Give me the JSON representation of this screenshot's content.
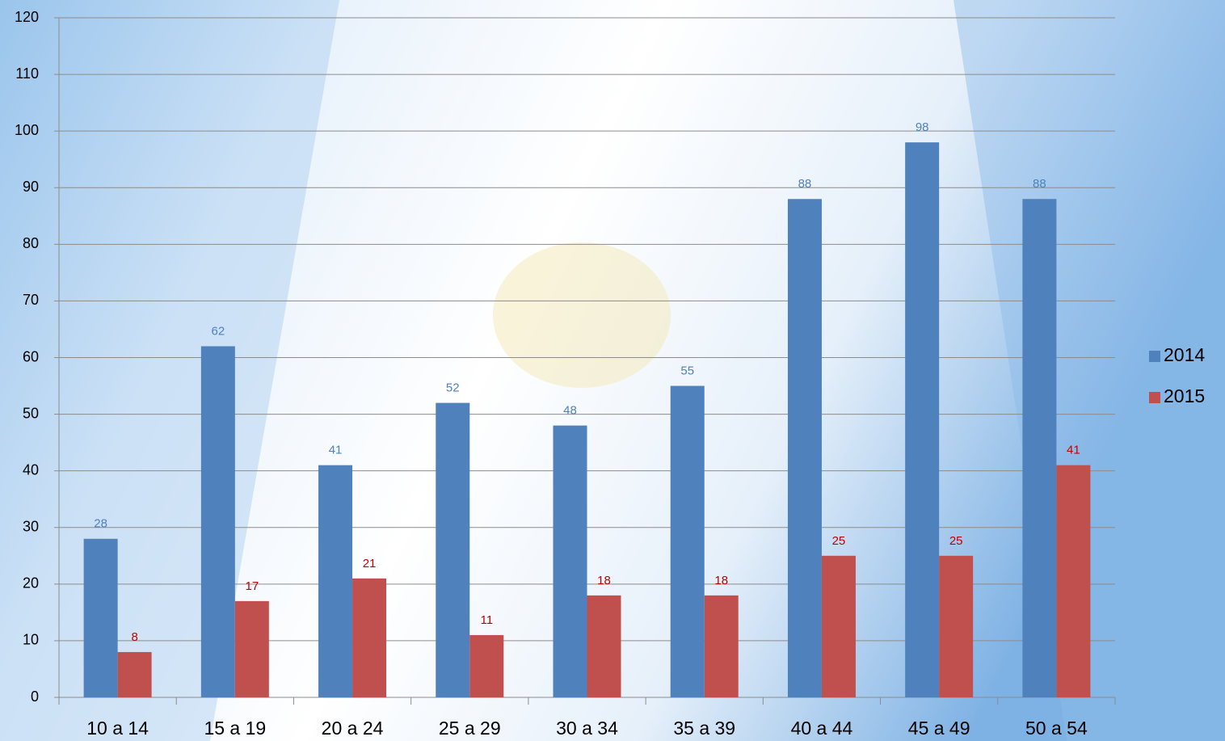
{
  "chart_data": {
    "type": "bar",
    "categories": [
      "10 a 14",
      "15 a 19",
      "20 a 24",
      "25 a 29",
      "30 a 34",
      "35 a 39",
      "40 a 44",
      "45 a 49",
      "50 a 54"
    ],
    "series": [
      {
        "name": "2014",
        "color": "#4f81bd",
        "label_color": "#4f81bd",
        "values": [
          28,
          62,
          41,
          52,
          48,
          55,
          88,
          98,
          88
        ]
      },
      {
        "name": "2015",
        "color": "#c0504d",
        "label_color": "#c00000",
        "values": [
          8,
          17,
          21,
          11,
          18,
          18,
          25,
          25,
          41
        ]
      }
    ],
    "ylim": [
      0,
      120
    ],
    "yticks": [
      0,
      10,
      20,
      30,
      40,
      50,
      60,
      70,
      80,
      90,
      100,
      110,
      120
    ],
    "grid": true,
    "legend": "right"
  }
}
